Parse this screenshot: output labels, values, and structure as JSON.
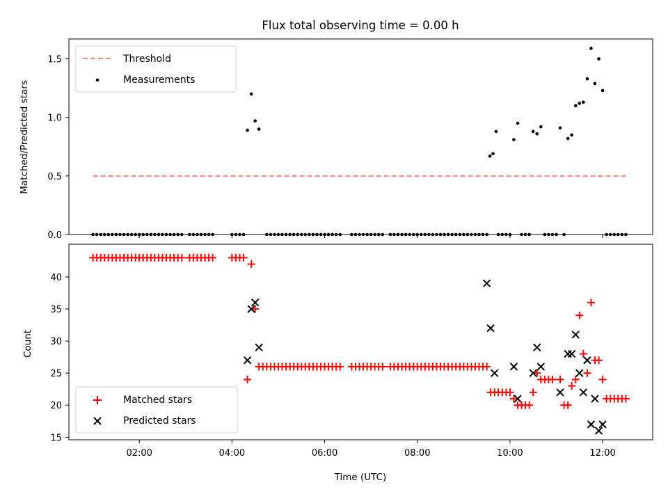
{
  "chart_data": [
    {
      "type": "scatter",
      "title": "Flux total observing time = 0.00 h",
      "xlabel": "",
      "ylabel": "Matched/Predicted stars",
      "xlim": [
        0.48,
        13.08
      ],
      "ylim": [
        0.0,
        1.67
      ],
      "yticks": [
        0.0,
        0.5,
        1.0,
        1.5
      ],
      "ytick_labels": [
        "0.0",
        "0.5",
        "1.0",
        "1.5"
      ],
      "legend_position": "top-left",
      "legend": [
        "Threshold",
        "Measurements"
      ],
      "colors": {
        "threshold": "#ff8080",
        "measurements": "#000000"
      },
      "series": [
        {
          "name": "Threshold",
          "style": "dashed-line",
          "x": [
            1.0,
            12.5
          ],
          "y": [
            0.5,
            0.5
          ]
        },
        {
          "name": "Measurements",
          "style": "dot",
          "x": [
            1.0,
            1.083,
            1.167,
            1.25,
            1.333,
            1.417,
            1.5,
            1.583,
            1.667,
            1.75,
            1.833,
            1.917,
            2.0,
            2.083,
            2.167,
            2.25,
            2.333,
            2.417,
            2.5,
            2.583,
            2.667,
            2.75,
            2.833,
            2.917,
            3.083,
            3.167,
            3.25,
            3.333,
            3.417,
            3.5,
            3.583,
            4.0,
            4.083,
            4.167,
            4.25,
            4.333,
            4.417,
            4.5,
            4.583,
            4.75,
            4.833,
            4.917,
            5.0,
            5.083,
            5.167,
            5.25,
            5.333,
            5.417,
            5.5,
            5.583,
            5.667,
            5.75,
            5.833,
            5.917,
            6.0,
            6.083,
            6.167,
            6.25,
            6.333,
            6.583,
            6.667,
            6.75,
            6.833,
            6.917,
            7.0,
            7.083,
            7.167,
            7.25,
            7.417,
            7.5,
            7.583,
            7.667,
            7.75,
            7.833,
            7.917,
            8.0,
            8.083,
            8.167,
            8.25,
            8.333,
            8.417,
            8.5,
            8.583,
            8.667,
            8.75,
            8.833,
            8.917,
            9.0,
            9.083,
            9.167,
            9.25,
            9.333,
            9.417,
            9.5,
            9.567,
            9.633,
            9.7,
            9.75,
            9.833,
            9.917,
            10.0,
            10.083,
            10.167,
            10.25,
            10.333,
            10.417,
            10.5,
            10.583,
            10.667,
            10.75,
            10.833,
            10.917,
            11.0,
            11.083,
            11.167,
            11.25,
            11.333,
            11.417,
            11.5,
            11.583,
            11.667,
            11.75,
            11.833,
            11.917,
            12.0,
            12.083,
            12.167,
            12.25,
            12.333,
            12.417,
            12.5
          ],
          "y": [
            0.0,
            0.0,
            0.0,
            0.0,
            0.0,
            0.0,
            0.0,
            0.0,
            0.0,
            0.0,
            0.0,
            0.0,
            0.0,
            0.0,
            0.0,
            0.0,
            0.0,
            0.0,
            0.0,
            0.0,
            0.0,
            0.0,
            0.0,
            0.0,
            0.0,
            0.0,
            0.0,
            0.0,
            0.0,
            0.0,
            0.0,
            0.0,
            0.0,
            0.0,
            0.0,
            0.89,
            1.2,
            0.97,
            0.9,
            0.0,
            0.0,
            0.0,
            0.0,
            0.0,
            0.0,
            0.0,
            0.0,
            0.0,
            0.0,
            0.0,
            0.0,
            0.0,
            0.0,
            0.0,
            0.0,
            0.0,
            0.0,
            0.0,
            0.0,
            0.0,
            0.0,
            0.0,
            0.0,
            0.0,
            0.0,
            0.0,
            0.0,
            0.0,
            0.0,
            0.0,
            0.0,
            0.0,
            0.0,
            0.0,
            0.0,
            0.0,
            0.0,
            0.0,
            0.0,
            0.0,
            0.0,
            0.0,
            0.0,
            0.0,
            0.0,
            0.0,
            0.0,
            0.0,
            0.0,
            0.0,
            0.0,
            0.0,
            0.0,
            0.0,
            0.67,
            0.69,
            0.88,
            0.0,
            0.0,
            0.0,
            0.0,
            0.81,
            0.95,
            0.0,
            0.0,
            0.0,
            0.88,
            0.86,
            0.92,
            0.0,
            0.0,
            0.0,
            0.0,
            0.91,
            0.0,
            0.82,
            0.85,
            1.1,
            1.12,
            1.13,
            1.33,
            1.59,
            1.29,
            1.5,
            1.23,
            0.0,
            0.0,
            0.0,
            0.0,
            0.0,
            0.0
          ]
        }
      ]
    },
    {
      "type": "scatter",
      "title": "",
      "xlabel": "Time (UTC)",
      "ylabel": "Count",
      "xlim": [
        0.48,
        13.08
      ],
      "ylim": [
        14.6,
        45.1
      ],
      "yticks": [
        15,
        20,
        25,
        30,
        35,
        40
      ],
      "ytick_labels": [
        "15",
        "20",
        "25",
        "30",
        "35",
        "40"
      ],
      "xticks": [
        2,
        4,
        6,
        8,
        10,
        12
      ],
      "xtick_labels": [
        "02:00",
        "04:00",
        "06:00",
        "08:00",
        "10:00",
        "12:00"
      ],
      "legend_position": "bottom-left",
      "legend": [
        "Matched stars",
        "Predicted stars"
      ],
      "colors": {
        "matched": "#ff0000",
        "predicted": "#000000"
      },
      "series": [
        {
          "name": "Matched stars",
          "marker": "+",
          "x": [
            1.0,
            1.083,
            1.167,
            1.25,
            1.333,
            1.417,
            1.5,
            1.583,
            1.667,
            1.75,
            1.833,
            1.917,
            2.0,
            2.083,
            2.167,
            2.25,
            2.333,
            2.417,
            2.5,
            2.583,
            2.667,
            2.75,
            2.833,
            2.917,
            3.083,
            3.167,
            3.25,
            3.333,
            3.417,
            3.5,
            3.583,
            4.0,
            4.083,
            4.167,
            4.25,
            4.333,
            4.417,
            4.5,
            4.583,
            4.667,
            4.75,
            4.833,
            4.917,
            5.0,
            5.083,
            5.167,
            5.25,
            5.333,
            5.417,
            5.5,
            5.583,
            5.667,
            5.75,
            5.833,
            5.917,
            6.0,
            6.083,
            6.167,
            6.25,
            6.333,
            6.583,
            6.667,
            6.75,
            6.833,
            6.917,
            7.0,
            7.083,
            7.167,
            7.25,
            7.417,
            7.5,
            7.583,
            7.667,
            7.75,
            7.833,
            7.917,
            8.0,
            8.083,
            8.167,
            8.25,
            8.333,
            8.417,
            8.5,
            8.583,
            8.667,
            8.75,
            8.833,
            8.917,
            9.0,
            9.083,
            9.167,
            9.25,
            9.333,
            9.417,
            9.5,
            9.583,
            9.667,
            9.75,
            9.833,
            9.917,
            10.0,
            10.083,
            10.167,
            10.25,
            10.333,
            10.417,
            10.5,
            10.583,
            10.667,
            10.75,
            10.833,
            10.917,
            11.083,
            11.167,
            11.25,
            11.333,
            11.417,
            11.5,
            11.583,
            11.667,
            11.75,
            11.833,
            11.917,
            12.0,
            12.083,
            12.167,
            12.25,
            12.333,
            12.417,
            12.5
          ],
          "y": [
            43,
            43,
            43,
            43,
            43,
            43,
            43,
            43,
            43,
            43,
            43,
            43,
            43,
            43,
            43,
            43,
            43,
            43,
            43,
            43,
            43,
            43,
            43,
            43,
            43,
            43,
            43,
            43,
            43,
            43,
            43,
            43,
            43,
            43,
            43,
            24,
            42,
            35,
            26,
            26,
            26,
            26,
            26,
            26,
            26,
            26,
            26,
            26,
            26,
            26,
            26,
            26,
            26,
            26,
            26,
            26,
            26,
            26,
            26,
            26,
            26,
            26,
            26,
            26,
            26,
            26,
            26,
            26,
            26,
            26,
            26,
            26,
            26,
            26,
            26,
            26,
            26,
            26,
            26,
            26,
            26,
            26,
            26,
            26,
            26,
            26,
            26,
            26,
            26,
            26,
            26,
            26,
            26,
            26,
            26,
            22,
            22,
            22,
            22,
            22,
            22,
            21,
            20,
            20,
            20,
            20,
            22,
            25,
            24,
            24,
            24,
            24,
            24,
            20,
            20,
            23,
            24,
            34,
            28,
            25,
            36,
            27,
            27,
            24,
            21,
            21,
            21,
            21,
            21,
            21
          ]
        },
        {
          "name": "Predicted stars",
          "marker": "x",
          "x": [
            4.333,
            4.417,
            4.5,
            4.583,
            9.5,
            9.583,
            9.667,
            10.083,
            10.167,
            10.5,
            10.583,
            10.667,
            11.083,
            11.25,
            11.333,
            11.417,
            11.5,
            11.583,
            11.667,
            11.75,
            11.833,
            11.917,
            12.0
          ],
          "y": [
            27,
            35,
            36,
            29,
            39,
            32,
            25,
            26,
            21,
            25,
            29,
            26,
            22,
            28,
            28,
            31,
            25,
            22,
            27,
            17,
            21,
            16,
            17
          ]
        }
      ]
    }
  ]
}
